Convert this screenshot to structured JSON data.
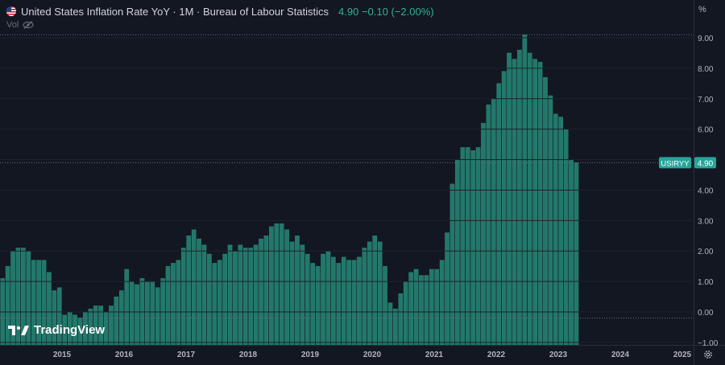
{
  "legend": {
    "title": "United States Inflation Rate YoY · 1M · Bureau of Labour Statistics",
    "values_text": "4.90 −0.10 (−2.00%)",
    "volume_label": "Vol"
  },
  "brand": {
    "name": "TradingView"
  },
  "axis": {
    "unit_label": "%"
  },
  "price_tag": {
    "symbol": "USIRYY",
    "value": "4.90"
  },
  "colors": {
    "background": "#131722",
    "bar": "#22786a",
    "bar_edge": "#2a8f7d",
    "tag": "#26a69a",
    "accent_text": "#2fb393",
    "grid": "#1e222d",
    "axis_text": "#b2b5be"
  },
  "icons": [
    "us-flag-icon",
    "eye-crossed-icon",
    "tradingview-logo-icon",
    "settings-gear-icon"
  ],
  "chart_data": {
    "type": "bar",
    "title": "United States Inflation Rate YoY",
    "x_start": "2014-01",
    "x_end": "2025-01",
    "series": [
      {
        "name": "USIRYY",
        "start": "2014-01",
        "frequency": "monthly",
        "values": [
          1.1,
          1.5,
          2.0,
          2.1,
          2.1,
          2.0,
          1.7,
          1.7,
          1.7,
          1.3,
          0.7,
          0.8,
          -0.1,
          -0.0,
          -0.1,
          -0.2,
          0.0,
          0.1,
          0.2,
          0.2,
          0.0,
          0.2,
          0.5,
          0.7,
          1.4,
          1.0,
          0.9,
          1.1,
          1.0,
          1.0,
          0.8,
          1.1,
          1.5,
          1.6,
          1.7,
          2.1,
          2.5,
          2.7,
          2.4,
          2.2,
          1.9,
          1.6,
          1.7,
          1.9,
          2.2,
          2.0,
          2.2,
          2.1,
          2.1,
          2.2,
          2.4,
          2.5,
          2.8,
          2.9,
          2.9,
          2.7,
          2.3,
          2.5,
          2.2,
          1.9,
          1.6,
          1.5,
          1.9,
          2.0,
          1.8,
          1.6,
          1.8,
          1.7,
          1.7,
          1.8,
          2.1,
          2.3,
          2.5,
          2.3,
          1.5,
          0.3,
          0.1,
          0.6,
          1.0,
          1.3,
          1.4,
          1.2,
          1.2,
          1.4,
          1.4,
          1.7,
          2.6,
          4.2,
          5.0,
          5.4,
          5.4,
          5.3,
          5.4,
          6.2,
          6.8,
          7.0,
          7.5,
          7.9,
          8.5,
          8.3,
          8.6,
          9.1,
          8.5,
          8.3,
          8.2,
          7.7,
          7.1,
          6.5,
          6.4,
          6.0,
          5.0,
          4.9
        ]
      }
    ],
    "x_ticks": [
      "2015",
      "2016",
      "2017",
      "2018",
      "2019",
      "2020",
      "2021",
      "2022",
      "2023",
      "2024",
      "2025"
    ],
    "y_ticks": [
      "−1.00",
      "0.00",
      "1.00",
      "2.00",
      "3.00",
      "4.00",
      "5.00",
      "6.00",
      "7.00",
      "8.00",
      "9.00"
    ],
    "ylim": [
      -1.0,
      9.0
    ],
    "ylabel": "%",
    "xlabel": "",
    "grid": false,
    "last_value": 4.9,
    "annotations": [
      "USIRYY 4.90"
    ]
  }
}
